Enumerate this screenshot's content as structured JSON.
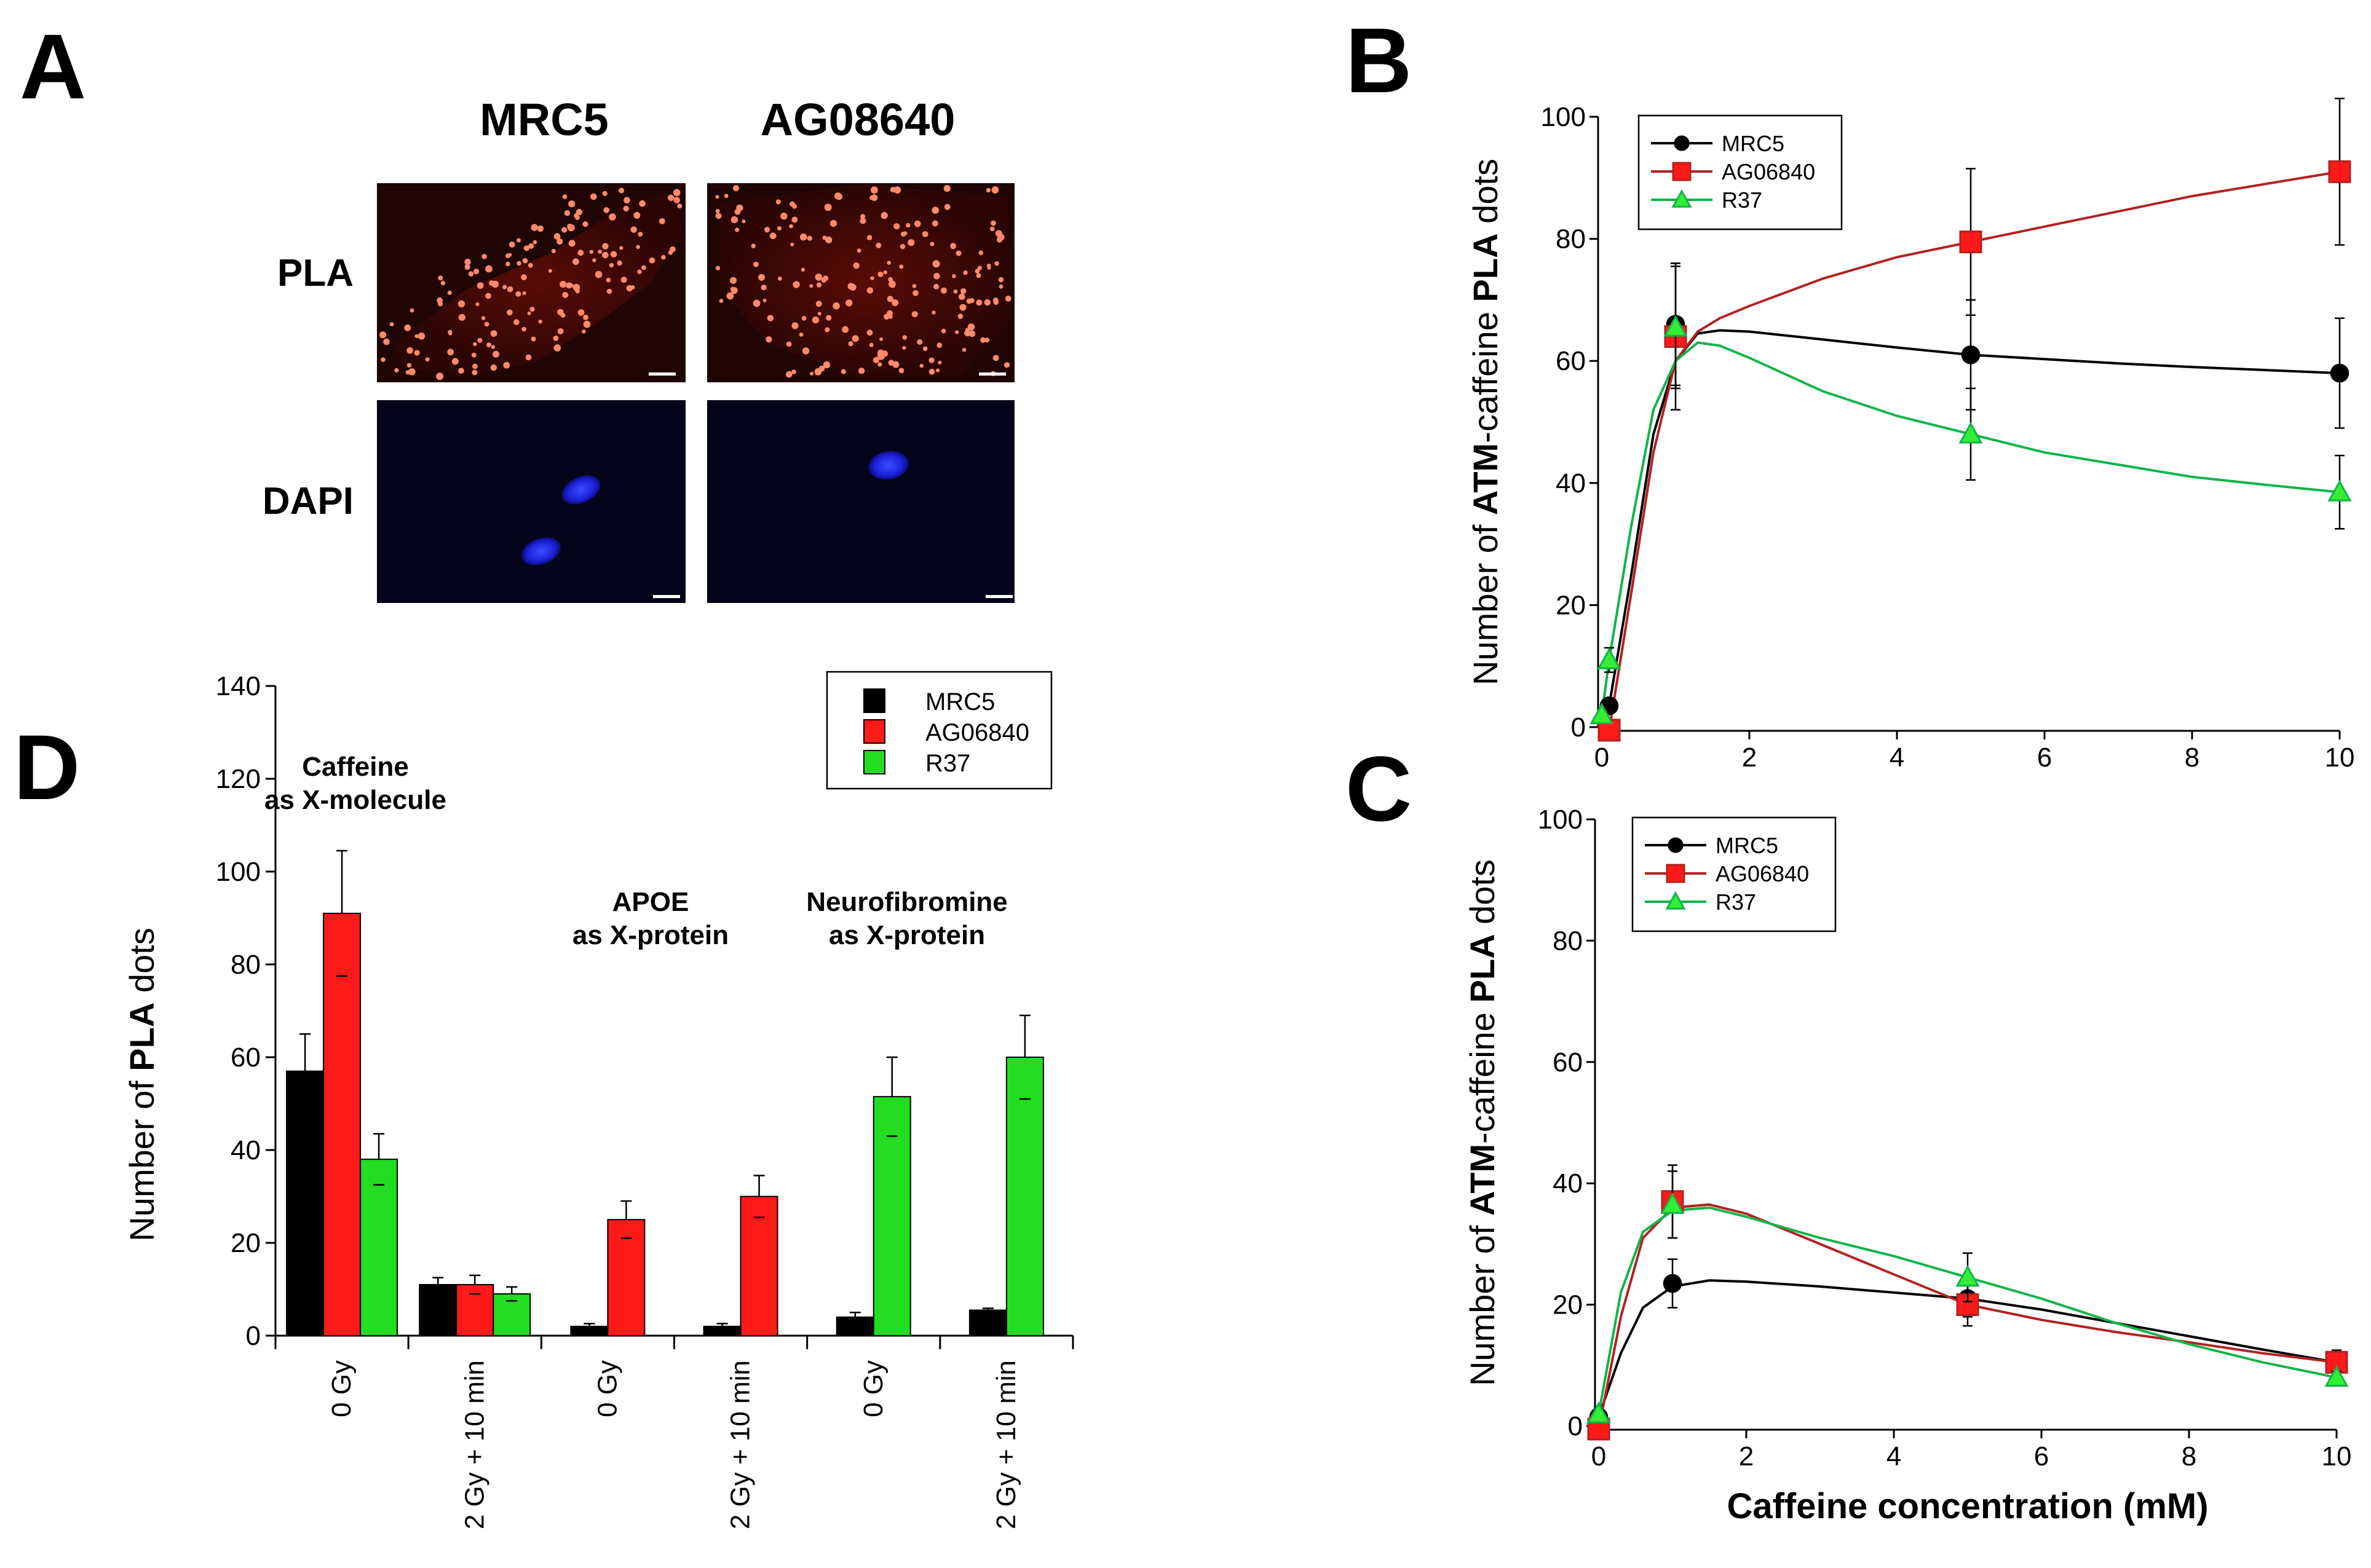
{
  "panels": {
    "A": {
      "letter": "A",
      "columns": [
        "MRC5",
        "AG08640"
      ],
      "rows": [
        "PLA",
        "DAPI"
      ]
    },
    "B": {
      "letter": "B"
    },
    "C": {
      "letter": "C"
    },
    "D": {
      "letter": "D"
    }
  },
  "chart_data": [
    {
      "id": "B",
      "type": "line",
      "ylabel": "Number of ATM-caffeine PLA dots",
      "ylabel_parts": [
        "Number of ",
        "ATM",
        "-caffeine ",
        "PLA",
        " dots"
      ],
      "xlabel": "",
      "xlim": [
        0,
        10
      ],
      "ylim": [
        0,
        100
      ],
      "xticks": [
        0,
        2,
        4,
        6,
        8,
        10
      ],
      "yticks": [
        0,
        20,
        40,
        60,
        80,
        100
      ],
      "legend_position": "top-left",
      "series": [
        {
          "name": "MRC5",
          "color": "#000000",
          "marker": "circle",
          "x": [
            0.1,
            1,
            5,
            10
          ],
          "y": [
            3.5,
            66,
            61,
            58
          ],
          "err": [
            1,
            10,
            9,
            9
          ],
          "curve": [
            [
              0.1,
              3.5
            ],
            [
              0.4,
              25
            ],
            [
              0.7,
              48
            ],
            [
              1,
              60
            ],
            [
              1.3,
              64.5
            ],
            [
              1.6,
              65
            ],
            [
              2,
              64.8
            ],
            [
              3,
              63.5
            ],
            [
              4,
              62.2
            ],
            [
              5,
              61
            ],
            [
              6,
              60.3
            ],
            [
              7,
              59.6
            ],
            [
              8,
              59
            ],
            [
              9,
              58.5
            ],
            [
              10,
              58
            ]
          ]
        },
        {
          "name": "AG06840",
          "color": "#b22222",
          "fill": "#ff1a1a",
          "marker": "square",
          "x": [
            0.1,
            1,
            5,
            10
          ],
          "y": [
            -0.5,
            64,
            79.5,
            91
          ],
          "err": [
            0.5,
            12,
            12,
            12
          ],
          "curve": [
            [
              0.1,
              -0.5
            ],
            [
              0.4,
              22
            ],
            [
              0.7,
              45
            ],
            [
              1,
              60
            ],
            [
              1.3,
              64.8
            ],
            [
              1.6,
              67
            ],
            [
              2,
              69
            ],
            [
              3,
              73.5
            ],
            [
              4,
              77
            ],
            [
              5,
              79.5
            ],
            [
              6,
              82
            ],
            [
              7,
              84.5
            ],
            [
              8,
              87
            ],
            [
              9,
              89
            ],
            [
              10,
              91
            ]
          ]
        },
        {
          "name": "R37",
          "color": "#11b44a",
          "fill": "#33ee33",
          "marker": "triangle",
          "x": [
            0,
            0.1,
            1,
            5,
            10
          ],
          "y": [
            2,
            11,
            65.5,
            48,
            38.5
          ],
          "err": [
            0,
            2,
            10,
            7.5,
            6
          ],
          "curve": [
            [
              0,
              2
            ],
            [
              0.1,
              11
            ],
            [
              0.4,
              33
            ],
            [
              0.7,
              52
            ],
            [
              1,
              60
            ],
            [
              1.3,
              63
            ],
            [
              1.6,
              62.5
            ],
            [
              2,
              60.5
            ],
            [
              3,
              55
            ],
            [
              4,
              51
            ],
            [
              5,
              48
            ],
            [
              6,
              45
            ],
            [
              7,
              43
            ],
            [
              8,
              41
            ],
            [
              9,
              39.7
            ],
            [
              10,
              38.5
            ]
          ]
        }
      ]
    },
    {
      "id": "C",
      "type": "line",
      "ylabel": "Number of ATM-caffeine PLA dots",
      "ylabel_parts": [
        "Number of ",
        "ATM",
        "-caffeine ",
        "PLA",
        " dots"
      ],
      "xlabel": "Caffeine concentration (mM)",
      "xlim": [
        0,
        10
      ],
      "ylim": [
        0,
        100
      ],
      "xticks": [
        0,
        2,
        4,
        6,
        8,
        10
      ],
      "yticks": [
        0,
        20,
        40,
        60,
        80,
        100
      ],
      "legend_position": "top-left",
      "series": [
        {
          "name": "MRC5",
          "color": "#000000",
          "marker": "circle",
          "x": [
            0,
            1,
            5,
            10
          ],
          "y": [
            1.5,
            23.5,
            21,
            10.5
          ],
          "err": [
            0,
            4,
            3,
            2
          ],
          "curve": [
            [
              0,
              1.5
            ],
            [
              0.3,
              12
            ],
            [
              0.6,
              19.5
            ],
            [
              1,
              23
            ],
            [
              1.5,
              24
            ],
            [
              2,
              23.8
            ],
            [
              3,
              23
            ],
            [
              4,
              22
            ],
            [
              5,
              21
            ],
            [
              6,
              19.2
            ],
            [
              7,
              17
            ],
            [
              8,
              14.8
            ],
            [
              9,
              12.6
            ],
            [
              10,
              10.5
            ]
          ]
        },
        {
          "name": "AG06840",
          "color": "#b22222",
          "fill": "#ff1a1a",
          "marker": "square",
          "x": [
            0,
            1,
            5,
            10
          ],
          "y": [
            -0.5,
            37,
            20,
            10.5
          ],
          "err": [
            0,
            6,
            3.5,
            1.5
          ],
          "curve": [
            [
              0,
              -0.5
            ],
            [
              0.3,
              18
            ],
            [
              0.6,
              31
            ],
            [
              1,
              36
            ],
            [
              1.5,
              36.5
            ],
            [
              2,
              35
            ],
            [
              3,
              30
            ],
            [
              4,
              25
            ],
            [
              5,
              20
            ],
            [
              6,
              17.5
            ],
            [
              7,
              15.5
            ],
            [
              8,
              13.8
            ],
            [
              9,
              12
            ],
            [
              10,
              10.5
            ]
          ]
        },
        {
          "name": "R37",
          "color": "#11b44a",
          "fill": "#33ee33",
          "marker": "triangle",
          "x": [
            0,
            1,
            5,
            10
          ],
          "y": [
            2,
            36.5,
            24.5,
            8
          ],
          "err": [
            0,
            5.5,
            4,
            1
          ],
          "curve": [
            [
              0,
              2
            ],
            [
              0.3,
              22
            ],
            [
              0.6,
              32
            ],
            [
              1,
              35.5
            ],
            [
              1.5,
              36
            ],
            [
              2,
              34.5
            ],
            [
              3,
              31
            ],
            [
              4,
              28
            ],
            [
              5,
              24.5
            ],
            [
              6,
              21
            ],
            [
              7,
              17
            ],
            [
              8,
              13.5
            ],
            [
              9,
              10.5
            ],
            [
              10,
              8
            ]
          ]
        }
      ]
    },
    {
      "id": "D",
      "type": "bar",
      "ylabel": "Number of PLA dots",
      "ylabel_parts": [
        "Number of ",
        "PLA",
        " dots"
      ],
      "ylim": [
        0,
        140
      ],
      "yticks": [
        0,
        20,
        40,
        60,
        80,
        100,
        120,
        140
      ],
      "legend_position": "top-right",
      "categories": [
        "0 Gy",
        "2 Gy + 10 min",
        "0 Gy",
        "2 Gy + 10 min",
        "0 Gy",
        "2 Gy + 10 min"
      ],
      "groups": [
        {
          "label_lines": [
            "Caffeine",
            "as X-molecule"
          ]
        },
        {
          "label_lines": [
            "APOE",
            "as X-protein"
          ]
        },
        {
          "label_lines": [
            "Neurofibromine",
            "as X-protein"
          ]
        }
      ],
      "series": [
        {
          "name": "MRC5",
          "color": "#000000",
          "values": [
            57,
            11,
            2,
            2,
            4,
            5.5
          ],
          "err": [
            8,
            1.5,
            0.6,
            0.6,
            1,
            0.4
          ]
        },
        {
          "name": "AG06840",
          "color": "#ff1a1a",
          "values": [
            91,
            11,
            25,
            30,
            null,
            null
          ],
          "err": [
            13.5,
            2,
            4,
            4.5,
            null,
            null
          ]
        },
        {
          "name": "R37",
          "color": "#22dd22",
          "values": [
            38,
            9,
            null,
            null,
            51.5,
            60
          ],
          "err": [
            5.5,
            1.5,
            null,
            null,
            8.5,
            9
          ]
        }
      ]
    }
  ]
}
